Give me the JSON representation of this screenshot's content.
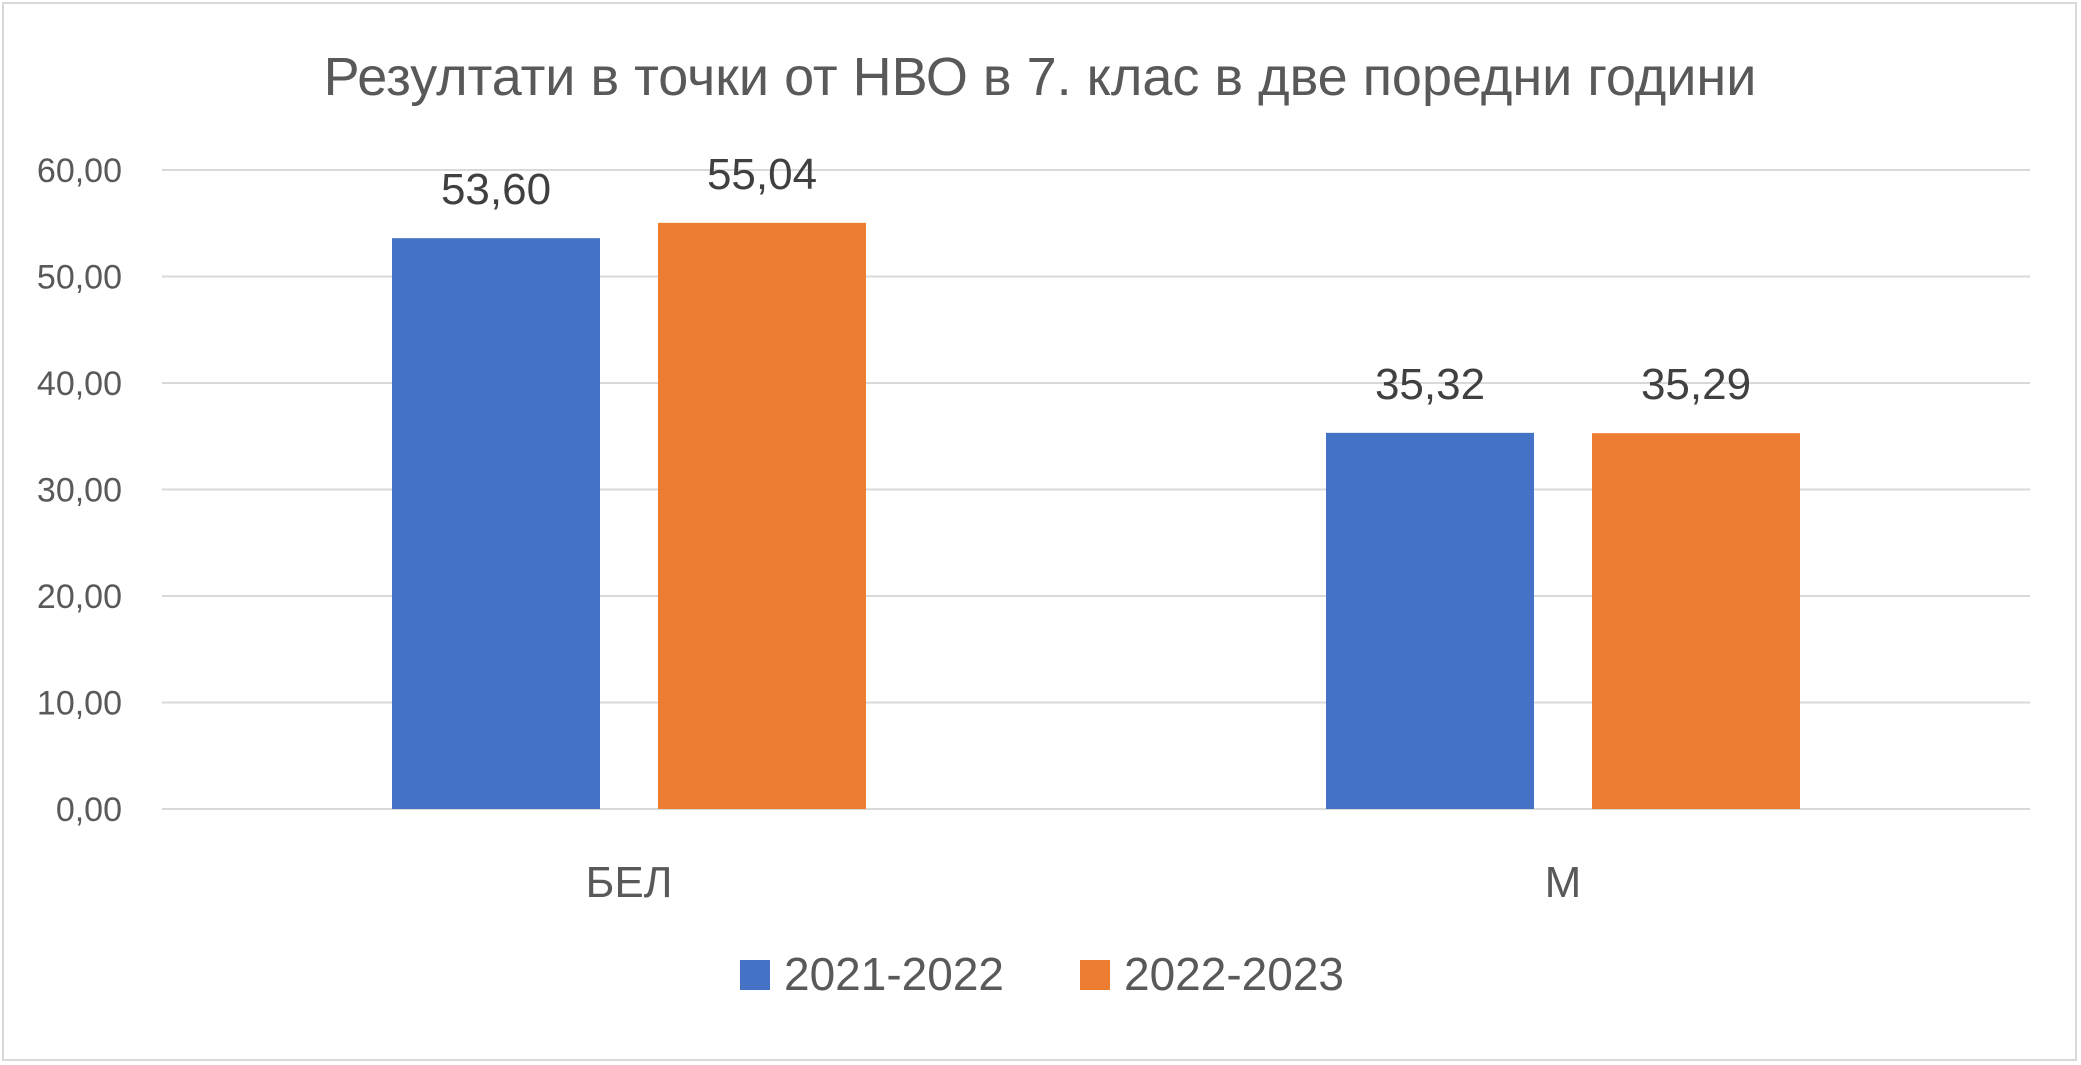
{
  "chart_data": {
    "type": "bar",
    "title": "Резултати в точки от НВО в 7. клас в две поредни години",
    "categories": [
      "БЕЛ",
      "М"
    ],
    "series": [
      {
        "name": "2021-2022",
        "values": [
          53.6,
          35.32
        ],
        "labels": [
          "53,60",
          "35,32"
        ],
        "color": "#4472c4"
      },
      {
        "name": "2022-2023",
        "values": [
          55.04,
          35.29
        ],
        "labels": [
          "55,04",
          "35,29"
        ],
        "color": "#ed7d31"
      }
    ],
    "ylim": [
      0,
      60
    ],
    "yticks": [
      0,
      10,
      20,
      30,
      40,
      50,
      60
    ],
    "ytick_labels": [
      "0,00",
      "10,00",
      "20,00",
      "30,00",
      "40,00",
      "50,00",
      "60,00"
    ],
    "grid": true,
    "legend": "bottom"
  }
}
